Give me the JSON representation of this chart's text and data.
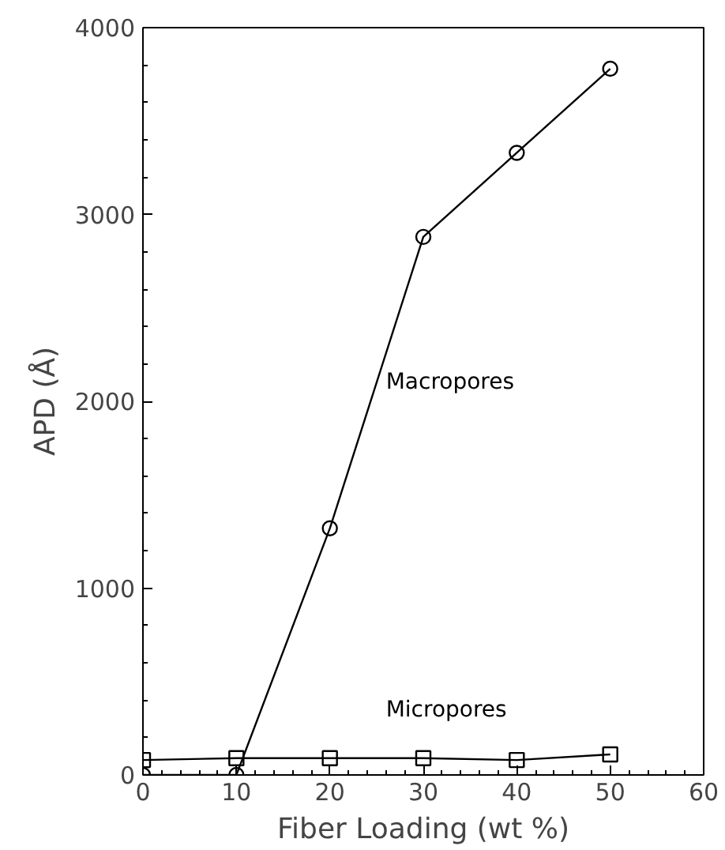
{
  "chart_data": {
    "type": "line",
    "xlabel": "Fiber Loading (wt %)",
    "ylabel": "APD (Å)",
    "x": [
      0,
      10,
      20,
      30,
      40,
      50
    ],
    "series": [
      {
        "name": "Macropores",
        "color": "#000000",
        "marker": "circle",
        "values": [
          0,
          0,
          1320,
          2880,
          3330,
          3780
        ]
      },
      {
        "name": "Micropores",
        "color": "#000000",
        "marker": "square",
        "values": [
          80,
          90,
          90,
          90,
          80,
          110
        ]
      }
    ],
    "xlim": [
      0,
      60
    ],
    "ylim": [
      0,
      4000
    ],
    "xticks": [
      0,
      10,
      20,
      30,
      40,
      50,
      60
    ],
    "yticks": [
      0,
      1000,
      2000,
      3000,
      4000
    ],
    "grid": false,
    "line_style": "solid"
  }
}
